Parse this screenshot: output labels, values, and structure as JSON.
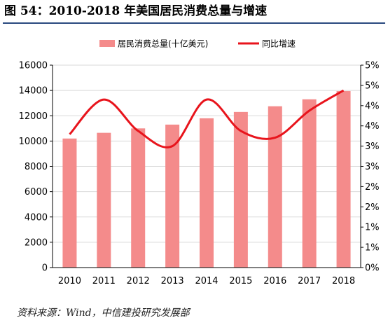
{
  "figure": {
    "title": "图 54：2010-2018 年美国居民消费总量与增速",
    "source": "资料来源：Wind，中信建投研究发展部"
  },
  "chart_data": {
    "type": "bar",
    "categories": [
      "2010",
      "2011",
      "2012",
      "2013",
      "2014",
      "2015",
      "2016",
      "2017",
      "2018"
    ],
    "series": [
      {
        "name": "居民消费总量(十亿美元)",
        "kind": "bar",
        "axis": "left",
        "color": "#f48b8b",
        "values": [
          10200,
          10650,
          11000,
          11300,
          11800,
          12300,
          12750,
          13300,
          13950
        ]
      },
      {
        "name": "同比增速",
        "kind": "line",
        "axis": "right",
        "color": "#e8141c",
        "values": [
          3.95,
          4.98,
          4.05,
          3.6,
          4.98,
          4.05,
          3.85,
          4.65,
          5.25
        ]
      }
    ],
    "ylim_left": [
      0,
      16000
    ],
    "yticks_left": [
      "0",
      "2000",
      "4000",
      "6000",
      "8000",
      "10000",
      "12000",
      "14000",
      "16000"
    ],
    "ylim_right": [
      0,
      6
    ],
    "yticks_right": [
      "0%",
      "1%",
      "1%",
      "2%",
      "2%",
      "3%",
      "3%",
      "4%",
      "4%",
      "5%",
      "5%"
    ],
    "grid": true,
    "legend_position": "top"
  }
}
